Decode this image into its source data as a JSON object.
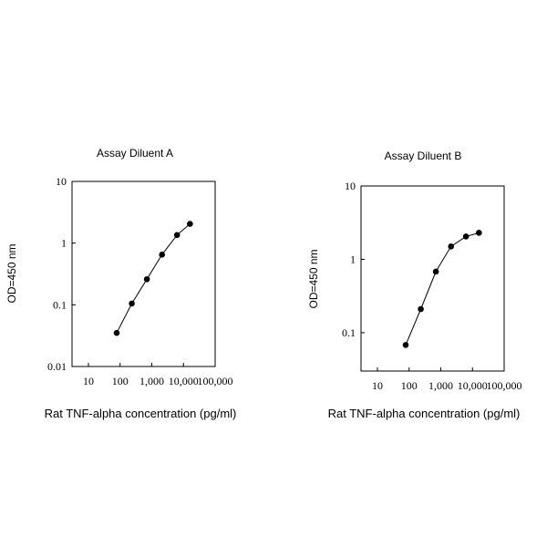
{
  "chart_data": [
    {
      "type": "line",
      "title": "Assay Diluent A",
      "xlabel": "Rat TNF-alpha concentration (pg/ml)",
      "ylabel": "OD=450 nm",
      "xscale": "log",
      "yscale": "log",
      "xlim": [
        10,
        100000
      ],
      "ylim": [
        0.01,
        10
      ],
      "x_ticks": [
        10,
        100,
        1000,
        10000,
        100000
      ],
      "x_tick_labels": [
        "10",
        "100",
        "1,000",
        "10,000",
        "100,000"
      ],
      "y_ticks": [
        0.01,
        0.1,
        1,
        10
      ],
      "y_tick_labels": [
        "0.01",
        "0.1",
        "1",
        "10"
      ],
      "grid": false,
      "series": [
        {
          "x": [
            78,
            234,
            700,
            2100,
            6250,
            16000
          ],
          "y": [
            0.035,
            0.105,
            0.26,
            0.65,
            1.35,
            2.05
          ]
        }
      ]
    },
    {
      "type": "line",
      "title": "Assay Diluent B",
      "xlabel": "Rat TNF-alpha concentration (pg/ml)",
      "ylabel": "OD=450 nm",
      "xscale": "log",
      "yscale": "log",
      "xlim": [
        10,
        100000
      ],
      "ylim": [
        0.03,
        10
      ],
      "x_ticks": [
        10,
        100,
        1000,
        10000,
        100000
      ],
      "x_tick_labels": [
        "10",
        "100",
        "1,000",
        "10,000",
        "100,000"
      ],
      "y_ticks": [
        0.1,
        1,
        10
      ],
      "y_tick_labels": [
        "0.1",
        "1",
        "10"
      ],
      "grid": false,
      "series": [
        {
          "x": [
            78,
            234,
            700,
            2100,
            6250,
            16000
          ],
          "y": [
            0.068,
            0.21,
            0.68,
            1.5,
            2.05,
            2.3
          ]
        }
      ]
    }
  ]
}
